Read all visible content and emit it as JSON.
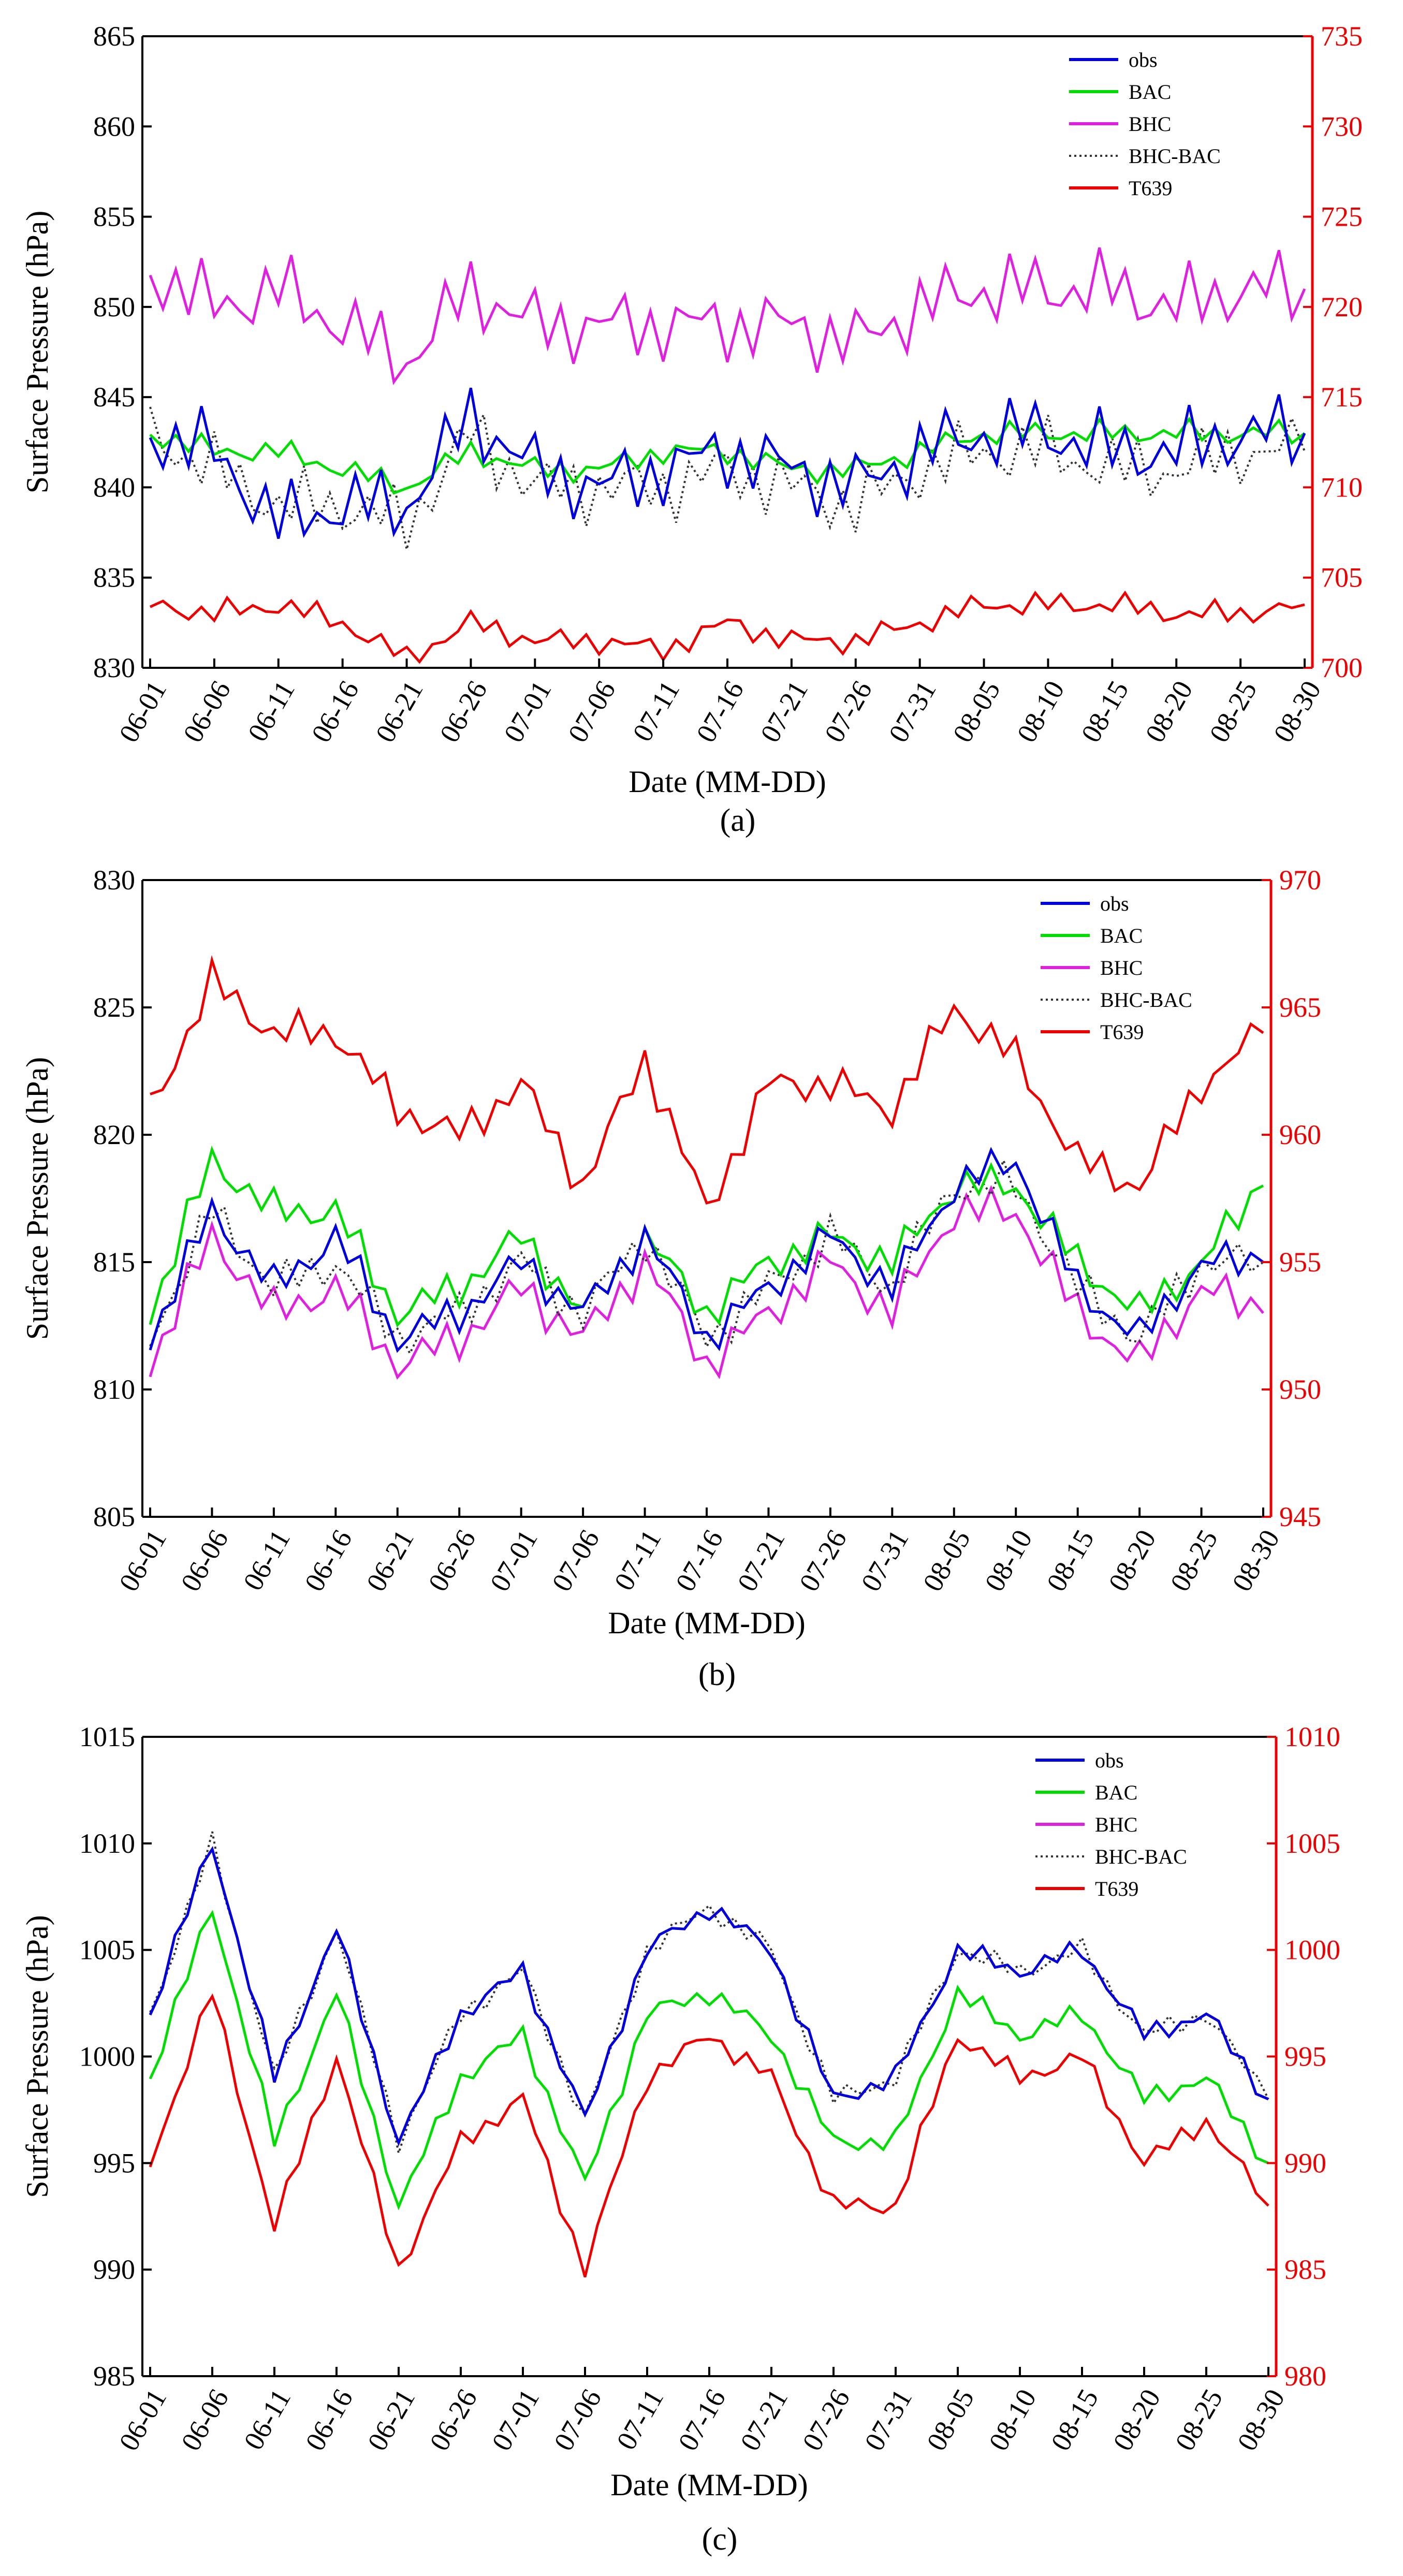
{
  "figure": {
    "x_axis_label": "Date  (MM-DD)",
    "y_axis_label": "Surface Pressure (hPa)",
    "date_ticks": [
      "06-01",
      "06-06",
      "06-11",
      "06-16",
      "06-21",
      "06-26",
      "07-01",
      "07-06",
      "07-11",
      "07-16",
      "07-21",
      "07-26",
      "07-31",
      "08-05",
      "08-10",
      "08-15",
      "08-20",
      "08-25",
      "08-30"
    ],
    "legend_entries": [
      "obs",
      "BAC",
      "BHC",
      "BHC-BAC",
      "T639"
    ],
    "colors": {
      "obs": "#0000dd",
      "BAC": "#00dd00",
      "BHC": "#e020e0",
      "BHC-BAC": "#333333",
      "T639": "#ee0000",
      "right_axis": "#ee0000"
    }
  },
  "chart_data": [
    {
      "type": "line",
      "panel": "(a)",
      "title": "",
      "xlabel": "Date  (MM-DD)",
      "ylabel": "Surface Pressure (hPa)",
      "ylim": [
        830,
        865
      ],
      "y_ticks": [
        "830",
        "835",
        "840",
        "845",
        "850",
        "855",
        "860",
        "865"
      ],
      "y2lim": [
        700,
        735
      ],
      "y2_ticks": [
        "700",
        "705",
        "710",
        "715",
        "720",
        "725",
        "730",
        "735"
      ],
      "x_categories": [
        "06-01",
        "06-06",
        "06-11",
        "06-16",
        "06-21",
        "06-26",
        "07-01",
        "07-06",
        "07-11",
        "07-16",
        "07-21",
        "07-26",
        "07-31",
        "08-05",
        "08-10",
        "08-15",
        "08-20",
        "08-25",
        "08-30"
      ],
      "series": [
        {
          "name": "obs",
          "axis": "left",
          "values": [
            843,
            842,
            838,
            839,
            839,
            844,
            841,
            840,
            841,
            842,
            841,
            840,
            842,
            843,
            843,
            842,
            842,
            843,
            843
          ]
        },
        {
          "name": "BAC",
          "axis": "left",
          "values": [
            843,
            842,
            842,
            841,
            840,
            842,
            841,
            841,
            842,
            842,
            841,
            841,
            842,
            843,
            843,
            843,
            843,
            843,
            843
          ]
        },
        {
          "name": "BHC",
          "axis": "left",
          "values": [
            852,
            850,
            851,
            849,
            847,
            851,
            849,
            849,
            849,
            849,
            849,
            848,
            850,
            851,
            851,
            851,
            850,
            851,
            851
          ]
        },
        {
          "name": "BHC-BAC",
          "axis": "left",
          "values": [
            843,
            841,
            839,
            839,
            838,
            843,
            840,
            840,
            840,
            841,
            840,
            839,
            841,
            842,
            842,
            841,
            841,
            842,
            842
          ]
        },
        {
          "name": "T639",
          "axis": "right",
          "values": [
            703.5,
            703,
            703.5,
            702.5,
            700.5,
            702.5,
            701.5,
            701.5,
            701,
            702.5,
            701.5,
            701.5,
            702.5,
            703.5,
            703.5,
            703.5,
            703,
            703,
            703.5
          ]
        }
      ]
    },
    {
      "type": "line",
      "panel": "(b)",
      "title": "",
      "xlabel": "Date  (MM-DD)",
      "ylabel": "Surface Pressure (hPa)",
      "ylim": [
        805,
        830
      ],
      "y_ticks": [
        "805",
        "810",
        "815",
        "820",
        "825",
        "830"
      ],
      "y2lim": [
        945,
        970
      ],
      "y2_ticks": [
        "945",
        "950",
        "955",
        "960",
        "965",
        "970"
      ],
      "x_categories": [
        "06-01",
        "06-06",
        "06-11",
        "06-16",
        "06-21",
        "06-26",
        "07-01",
        "07-06",
        "07-11",
        "07-16",
        "07-21",
        "07-26",
        "07-31",
        "08-05",
        "08-10",
        "08-15",
        "08-20",
        "08-25",
        "08-30"
      ],
      "series": [
        {
          "name": "obs",
          "axis": "left",
          "values": [
            812,
            817,
            814,
            816,
            812,
            813,
            815,
            813,
            816,
            812,
            814,
            816,
            814,
            818,
            819,
            814,
            812,
            815,
            815
          ]
        },
        {
          "name": "BAC",
          "axis": "left",
          "values": [
            813,
            819,
            817,
            817,
            813,
            814,
            816,
            813,
            816,
            813,
            815,
            816,
            815,
            818,
            818,
            815,
            813,
            815,
            818
          ]
        },
        {
          "name": "BHC",
          "axis": "left",
          "values": [
            811,
            816,
            813,
            814,
            811,
            812,
            814,
            812,
            815,
            811,
            813,
            815,
            813,
            817,
            817,
            813,
            811,
            814,
            813
          ]
        },
        {
          "name": "BHC-BAC",
          "axis": "left",
          "values": [
            812,
            817,
            814,
            815,
            812,
            813,
            815,
            813,
            816,
            812,
            814,
            816,
            814,
            818,
            818,
            814,
            812,
            815,
            815
          ]
        },
        {
          "name": "T639",
          "axis": "right",
          "values": [
            961,
            966,
            964,
            964,
            961,
            960,
            962,
            958,
            963,
            957,
            962,
            962,
            961,
            965,
            963,
            959,
            958,
            962,
            964
          ]
        }
      ]
    },
    {
      "type": "line",
      "panel": "(c)",
      "title": "",
      "xlabel": "Date  (MM-DD)",
      "ylabel": "Surface Pressure (hPa)",
      "ylim": [
        985,
        1015
      ],
      "y_ticks": [
        "985",
        "990",
        "995",
        "1000",
        "1005",
        "1010",
        "1015"
      ],
      "y2lim": [
        980,
        1010
      ],
      "y2_ticks": [
        "980",
        "985",
        "990",
        "995",
        "1000",
        "1005",
        "1010"
      ],
      "x_categories": [
        "06-01",
        "06-06",
        "06-11",
        "06-16",
        "06-21",
        "06-26",
        "07-01",
        "07-06",
        "07-11",
        "07-16",
        "07-21",
        "07-26",
        "07-31",
        "08-05",
        "08-10",
        "08-15",
        "08-20",
        "08-25",
        "08-30"
      ],
      "series": [
        {
          "name": "obs",
          "axis": "left",
          "values": [
            1002,
            1010,
            999,
            1006,
            996,
            1002,
            1004,
            997,
            1005,
            1007,
            1005,
            998,
            999,
            1005,
            1004,
            1005,
            1001,
            1002,
            998
          ]
        },
        {
          "name": "BAC",
          "axis": "left",
          "values": [
            999,
            1007,
            996,
            1003,
            993,
            999,
            1001,
            994,
            1002,
            1003,
            1001,
            996,
            996,
            1003,
            1001,
            1002,
            998,
            999,
            995
          ]
        },
        {
          "name": "BHC",
          "axis": "left",
          "values": [
            1002,
            1010,
            999,
            1006,
            996,
            1002,
            1004,
            997,
            1005,
            1007,
            1005,
            998,
            999,
            1005,
            1004,
            1005,
            1001,
            1002,
            998
          ]
        },
        {
          "name": "BHC-BAC",
          "axis": "left",
          "values": [
            1002,
            1010,
            999,
            1006,
            996,
            1002,
            1004,
            997,
            1005,
            1007,
            1005,
            998,
            999,
            1005,
            1004,
            1005,
            1001,
            1002,
            998
          ]
        },
        {
          "name": "T639",
          "axis": "right",
          "values": [
            990,
            998,
            987,
            995,
            985,
            991,
            993,
            985,
            994,
            996,
            994,
            988,
            988,
            996,
            994,
            995,
            990,
            992,
            988
          ]
        }
      ]
    }
  ]
}
